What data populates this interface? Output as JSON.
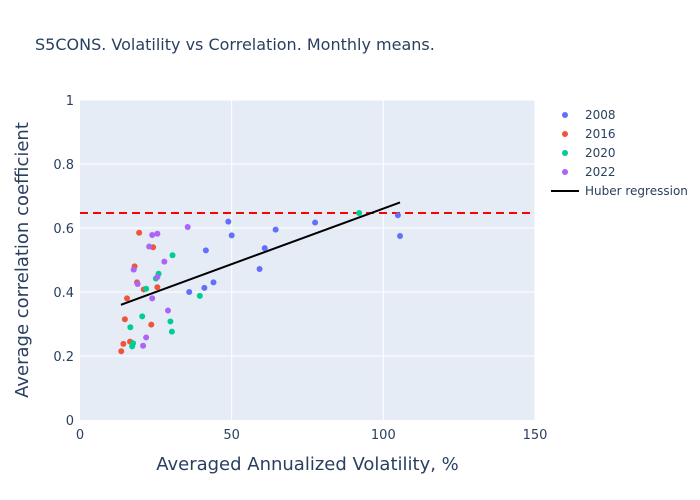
{
  "chart_data": {
    "type": "scatter",
    "title": "S5CONS. Volatility vs Correlation. Monthly means.",
    "xlabel": "Averaged Annualized Volatility, %",
    "ylabel": "Average correlation coefficient",
    "xlim": [
      0,
      150
    ],
    "ylim": [
      0,
      1
    ],
    "x_ticks": [
      "0",
      "50",
      "100",
      "150"
    ],
    "y_ticks": [
      "0",
      "0.2",
      "0.4",
      "0.6",
      "0.8",
      "1"
    ],
    "grid": true,
    "legend_position": "top-right",
    "series": [
      {
        "name": "2008",
        "color": "#636efa",
        "points": [
          [
            48.9,
            0.62
          ],
          [
            50.0,
            0.577
          ],
          [
            41.5,
            0.53
          ],
          [
            60.9,
            0.537
          ],
          [
            64.5,
            0.595
          ],
          [
            77.5,
            0.617
          ],
          [
            104.8,
            0.64
          ],
          [
            105.5,
            0.575
          ],
          [
            59.2,
            0.472
          ],
          [
            44.0,
            0.43
          ],
          [
            41.0,
            0.413
          ],
          [
            36.0,
            0.4
          ]
        ]
      },
      {
        "name": "2016",
        "color": "#ef553b",
        "points": [
          [
            19.5,
            0.585
          ],
          [
            24.1,
            0.54
          ],
          [
            18.0,
            0.48
          ],
          [
            18.8,
            0.43
          ],
          [
            25.5,
            0.415
          ],
          [
            21.0,
            0.408
          ],
          [
            15.5,
            0.38
          ],
          [
            14.8,
            0.315
          ],
          [
            23.5,
            0.298
          ],
          [
            16.5,
            0.245
          ],
          [
            14.3,
            0.238
          ],
          [
            13.6,
            0.215
          ]
        ]
      },
      {
        "name": "2020",
        "color": "#00cc96",
        "points": [
          [
            92.0,
            0.647
          ],
          [
            30.5,
            0.515
          ],
          [
            25.9,
            0.457
          ],
          [
            25.0,
            0.442
          ],
          [
            21.8,
            0.41
          ],
          [
            39.5,
            0.388
          ],
          [
            20.5,
            0.324
          ],
          [
            29.8,
            0.308
          ],
          [
            30.3,
            0.276
          ],
          [
            16.6,
            0.29
          ],
          [
            17.5,
            0.24
          ],
          [
            17.2,
            0.23
          ]
        ]
      },
      {
        "name": "2022",
        "color": "#ab63fa",
        "points": [
          [
            35.5,
            0.603
          ],
          [
            25.5,
            0.582
          ],
          [
            23.8,
            0.578
          ],
          [
            22.8,
            0.542
          ],
          [
            27.8,
            0.495
          ],
          [
            17.7,
            0.47
          ],
          [
            25.5,
            0.447
          ],
          [
            19.0,
            0.425
          ],
          [
            23.8,
            0.38
          ],
          [
            29.0,
            0.342
          ],
          [
            21.8,
            0.258
          ],
          [
            20.8,
            0.232
          ]
        ]
      }
    ],
    "regression": {
      "name": "Huber regression",
      "color": "#000000",
      "x": [
        13.5,
        105.5
      ],
      "y": [
        0.36,
        0.68
      ]
    },
    "reference_line": {
      "y": 0.647,
      "color": "#ff0000",
      "style": "dashed"
    },
    "plot_background": "#e5ecf6"
  }
}
